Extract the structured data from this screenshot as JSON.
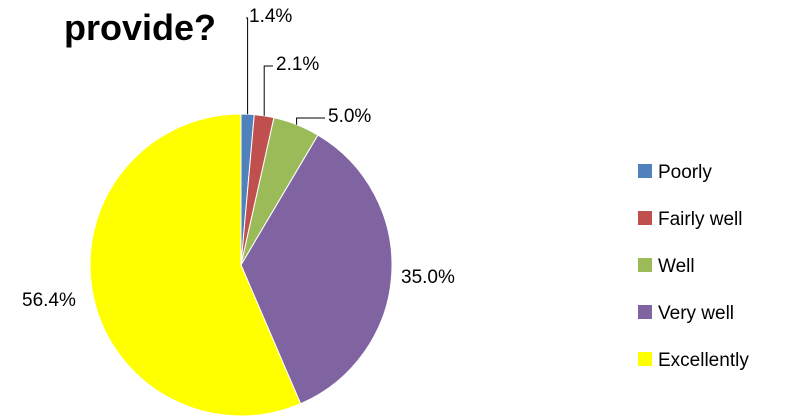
{
  "chart_data": {
    "type": "pie",
    "title": "provide?",
    "categories": [
      "Poorly",
      "Fairly well",
      "Well",
      "Very well",
      "Excellently"
    ],
    "values": [
      1.4,
      2.1,
      5.0,
      35.0,
      56.4
    ],
    "labels": [
      "1.4%",
      "2.1%",
      "5.0%",
      "35.0%",
      "56.4%"
    ],
    "colors": [
      "#4f81bd",
      "#c0504d",
      "#9bbb59",
      "#8064a2",
      "#ffff00"
    ],
    "start": "12 o'clock",
    "direction": "clockwise",
    "legend": "right"
  }
}
